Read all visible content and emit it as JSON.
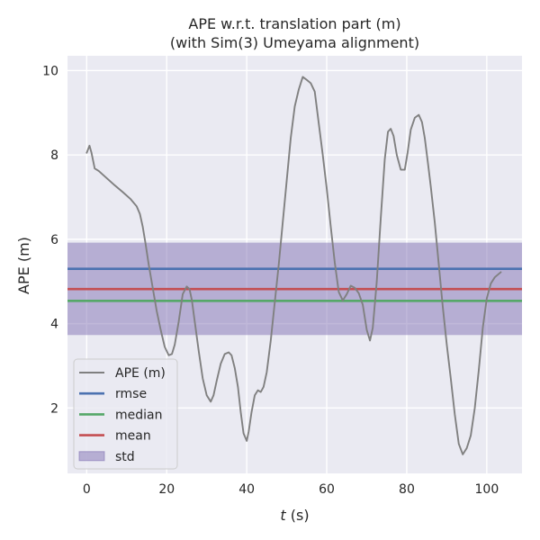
{
  "chart_data": {
    "type": "line",
    "title_line1": "APE w.r.t. translation part (m)",
    "title_line2": "(with Sim(3) Umeyama alignment)",
    "xlabel_italic": "t",
    "xlabel_rest": " (s)",
    "ylabel": "APE (m)",
    "xlim": [
      -4.8,
      108.8
    ],
    "ylim": [
      0.45,
      10.35
    ],
    "x_ticks": [
      0,
      20,
      40,
      60,
      80,
      100
    ],
    "y_ticks": [
      2,
      4,
      6,
      8,
      10
    ],
    "grid": true,
    "legend_position": "lower-left",
    "series": [
      {
        "name": "APE (m)",
        "color": "#808080",
        "x": [
          0,
          0.7,
          1.2,
          2,
          3,
          5,
          7,
          9,
          11,
          12.5,
          13.3,
          14,
          14.7,
          15.5,
          16.5,
          17.5,
          18.5,
          19.5,
          20.5,
          21.3,
          22,
          23,
          24,
          25,
          25.7,
          26.3,
          27,
          28,
          29,
          30,
          31,
          31.7,
          32.5,
          33.5,
          34.5,
          35.5,
          36.2,
          37,
          37.8,
          38.5,
          39.2,
          40,
          40.5,
          41.2,
          42,
          42.8,
          43.5,
          44.2,
          45,
          46,
          47,
          48,
          49,
          50,
          51,
          52,
          53,
          54,
          55,
          56,
          57,
          58,
          59,
          60,
          61,
          62,
          63,
          64,
          65,
          66,
          67,
          68,
          69,
          70,
          70.8,
          71.5,
          72.5,
          73.5,
          74.5,
          75.3,
          76,
          76.7,
          77.5,
          78.5,
          79.5,
          80.2,
          81,
          82,
          83,
          83.8,
          84.5,
          85.3,
          86,
          87,
          88,
          89,
          90,
          91,
          92,
          93,
          94,
          95,
          96,
          97,
          98,
          99,
          100,
          101,
          102,
          103,
          103.5
        ],
        "values": [
          8.05,
          8.22,
          8.05,
          7.68,
          7.62,
          7.45,
          7.28,
          7.12,
          6.95,
          6.78,
          6.6,
          6.3,
          5.9,
          5.4,
          4.85,
          4.3,
          3.85,
          3.45,
          3.25,
          3.28,
          3.5,
          4.05,
          4.7,
          4.88,
          4.82,
          4.55,
          4.05,
          3.35,
          2.7,
          2.3,
          2.15,
          2.3,
          2.65,
          3.05,
          3.28,
          3.32,
          3.25,
          2.95,
          2.5,
          1.9,
          1.4,
          1.22,
          1.45,
          1.9,
          2.3,
          2.42,
          2.38,
          2.5,
          2.85,
          3.6,
          4.5,
          5.4,
          6.4,
          7.4,
          8.4,
          9.15,
          9.55,
          9.85,
          9.78,
          9.7,
          9.5,
          8.75,
          8.0,
          7.2,
          6.3,
          5.45,
          4.75,
          4.55,
          4.7,
          4.9,
          4.85,
          4.72,
          4.45,
          3.85,
          3.6,
          3.9,
          5.0,
          6.5,
          7.9,
          8.55,
          8.62,
          8.45,
          8.0,
          7.65,
          7.65,
          8.05,
          8.6,
          8.88,
          8.95,
          8.78,
          8.4,
          7.8,
          7.25,
          6.4,
          5.4,
          4.4,
          3.5,
          2.7,
          1.85,
          1.15,
          0.9,
          1.05,
          1.35,
          2.0,
          2.9,
          3.9,
          4.6,
          4.95,
          5.1,
          5.18,
          5.22
        ]
      },
      {
        "name": "rmse",
        "color": "#4c72b0",
        "y": 5.3
      },
      {
        "name": "median",
        "color": "#55a868",
        "y": 4.54
      },
      {
        "name": "mean",
        "color": "#c44e52",
        "y": 4.82
      }
    ],
    "std_band": {
      "name": "std",
      "color": "#8172b3",
      "lower": 3.73,
      "upper": 5.92
    }
  }
}
